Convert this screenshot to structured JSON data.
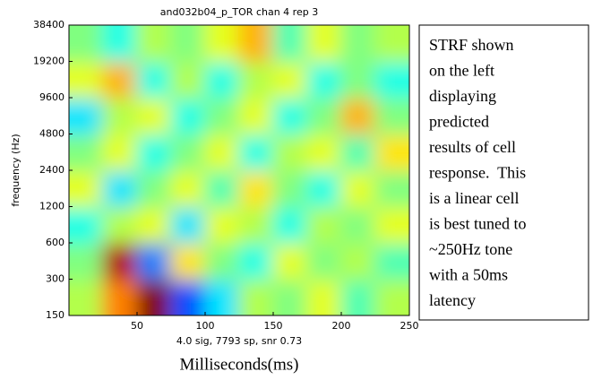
{
  "chart_data": {
    "type": "heatmap",
    "title": "and032b04_p_TOR chan 4 rep 3",
    "y_label": "frequency (Hz)",
    "x_label": "4.0 sig, 7793 sp, snr 0.73",
    "x_label_2": "Milliseconds(ms)",
    "colormap": "jet",
    "ylog": true,
    "xlim": [
      0,
      250
    ],
    "xticks": [
      50,
      100,
      150,
      200,
      250
    ],
    "ylim": [
      150,
      38400
    ],
    "yticks": [
      150,
      300,
      600,
      1200,
      2400,
      4800,
      9600,
      19200,
      38400
    ],
    "zlim": [
      -1,
      1
    ],
    "x": [
      12.5,
      37.5,
      62.5,
      87.5,
      112.5,
      137.5,
      162.5,
      187.5,
      212.5,
      237.5
    ],
    "y": [
      212,
      424,
      849,
      1697,
      3394,
      6788,
      13576,
      27153
    ],
    "z": [
      [
        0.1,
        0.5,
        1.0,
        -0.6,
        -0.3,
        0.1,
        0.0,
        0.2,
        -0.1,
        0.1
      ],
      [
        0.0,
        0.9,
        -0.5,
        0.3,
        0.0,
        -0.2,
        0.2,
        0.0,
        0.1,
        -0.1
      ],
      [
        -0.2,
        0.1,
        0.2,
        -0.3,
        0.2,
        0.1,
        -0.2,
        0.1,
        0.0,
        0.2
      ],
      [
        0.2,
        -0.3,
        0.0,
        0.2,
        -0.1,
        0.3,
        0.0,
        -0.2,
        0.2,
        0.0
      ],
      [
        0.0,
        0.2,
        -0.2,
        0.0,
        0.2,
        -0.2,
        0.1,
        0.2,
        -0.1,
        0.3
      ],
      [
        -0.3,
        0.1,
        0.2,
        -0.2,
        0.0,
        0.2,
        -0.2,
        0.0,
        0.4,
        0.0
      ],
      [
        0.2,
        0.4,
        -0.2,
        0.1,
        -0.2,
        0.1,
        0.2,
        -0.2,
        0.0,
        -0.2
      ],
      [
        0.0,
        -0.2,
        0.1,
        0.0,
        0.2,
        0.4,
        -0.1,
        0.2,
        0.0,
        0.1
      ]
    ],
    "annotation_lines": [
      "STRF shown",
      "on the left",
      "displaying",
      "predicted",
      "results of cell",
      "response.  This",
      "is a linear cell",
      "is best tuned to",
      "~250Hz tone",
      "with a 50ms",
      "latency"
    ]
  }
}
